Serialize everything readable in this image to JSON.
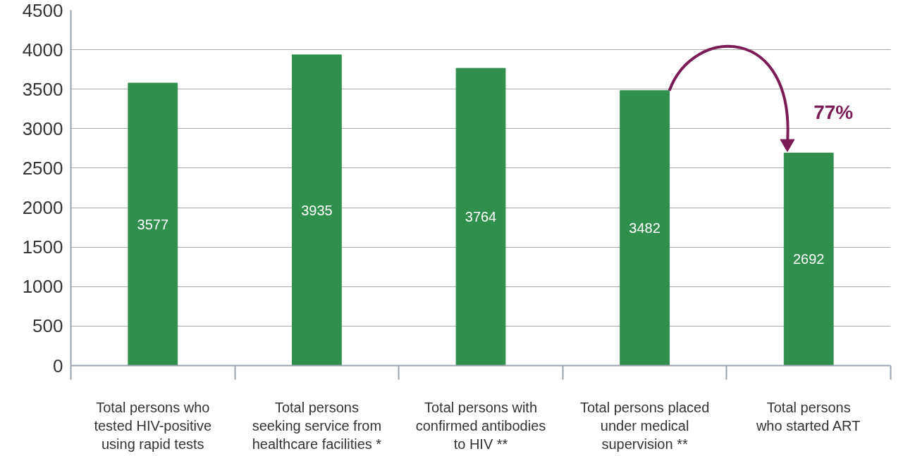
{
  "chart_data": {
    "type": "bar",
    "categories": [
      "Total persons who\ntested HIV-positive\nusing rapid tests",
      "Total persons\nseeking service from\nhealthcare facilities *",
      "Total persons with\nconfirmed antibodies\nto HIV **",
      "Total persons placed\nunder medical\nsupervision **",
      "Total persons\nwho started ART"
    ],
    "values": [
      3577,
      3935,
      3764,
      3482,
      2692
    ],
    "color": "#318f4d",
    "ylim": [
      0,
      4500
    ],
    "yticks": [
      0,
      500,
      1000,
      1500,
      2000,
      2500,
      3000,
      3500,
      4000,
      4500
    ],
    "grid": "y",
    "data_labels": true,
    "annotations": [
      "77%"
    ]
  }
}
